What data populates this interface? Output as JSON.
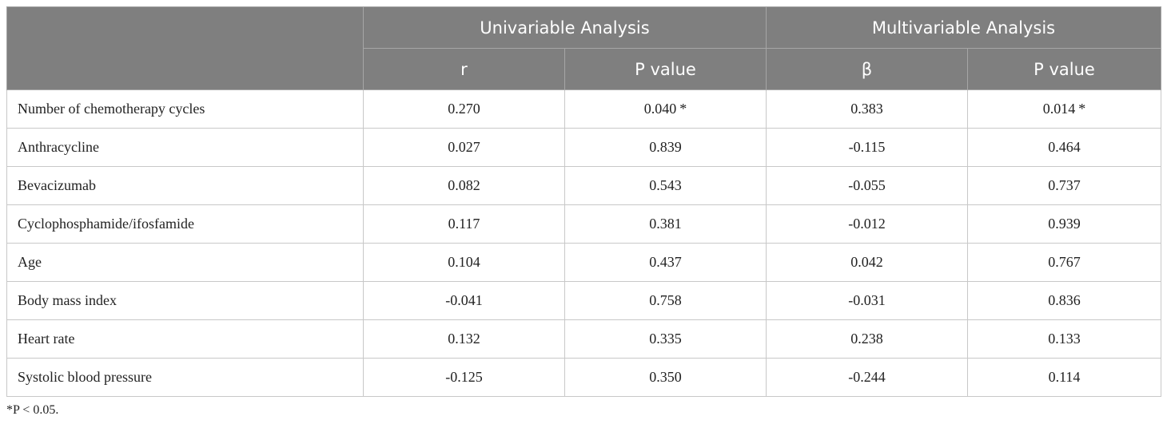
{
  "table": {
    "header": {
      "groups": [
        "Univariable Analysis",
        "Multivariable Analysis"
      ],
      "columns": [
        "r",
        "P value",
        "β",
        "P value"
      ]
    },
    "rows": [
      {
        "label": "Number of chemotherapy cycles",
        "r": "0.270",
        "p_uni": "0.040",
        "p_uni_sig": "*",
        "beta": "0.383",
        "p_multi": "0.014",
        "p_multi_sig": "*"
      },
      {
        "label": "Anthracycline",
        "r": "0.027",
        "p_uni": "0.839",
        "p_uni_sig": "",
        "beta": "-0.115",
        "p_multi": "0.464",
        "p_multi_sig": ""
      },
      {
        "label": "Bevacizumab",
        "r": "0.082",
        "p_uni": "0.543",
        "p_uni_sig": "",
        "beta": "-0.055",
        "p_multi": "0.737",
        "p_multi_sig": ""
      },
      {
        "label": "Cyclophosphamide/ifosfamide",
        "r": "0.117",
        "p_uni": "0.381",
        "p_uni_sig": "",
        "beta": "-0.012",
        "p_multi": "0.939",
        "p_multi_sig": ""
      },
      {
        "label": "Age",
        "r": "0.104",
        "p_uni": "0.437",
        "p_uni_sig": "",
        "beta": "0.042",
        "p_multi": "0.767",
        "p_multi_sig": ""
      },
      {
        "label": "Body mass index",
        "r": "-0.041",
        "p_uni": "0.758",
        "p_uni_sig": "",
        "beta": "-0.031",
        "p_multi": "0.836",
        "p_multi_sig": ""
      },
      {
        "label": "Heart rate",
        "r": "0.132",
        "p_uni": "0.335",
        "p_uni_sig": "",
        "beta": "0.238",
        "p_multi": "0.133",
        "p_multi_sig": ""
      },
      {
        "label": "Systolic blood pressure",
        "r": "-0.125",
        "p_uni": "0.350",
        "p_uni_sig": "",
        "beta": "-0.244",
        "p_multi": "0.114",
        "p_multi_sig": ""
      }
    ]
  },
  "footnote": "*P < 0.05.",
  "colors": {
    "header_bg": "#7f7f7f",
    "header_text": "#ffffff",
    "grid": "#c8c8c8"
  }
}
